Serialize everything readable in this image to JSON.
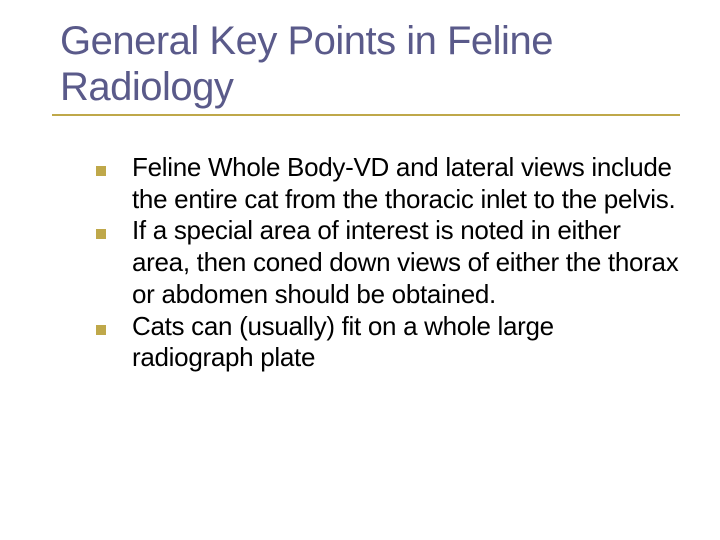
{
  "slide": {
    "title": "General Key Points in Feline Radiology",
    "title_color": "#5a5a8a",
    "title_fontsize": 40,
    "underline_color": "#bfa84a",
    "body_fontsize": 26,
    "body_color": "#000000",
    "bullet_color": "#bfa84a",
    "background_color": "#ffffff",
    "bullets": [
      "Feline Whole Body-VD and lateral views include the entire cat from the thoracic inlet to the pelvis.",
      "If a special area of interest is noted in either area, then coned down views of either the thorax or abdomen should be obtained.",
      "Cats can (usually) fit on a whole large radiograph plate"
    ]
  }
}
